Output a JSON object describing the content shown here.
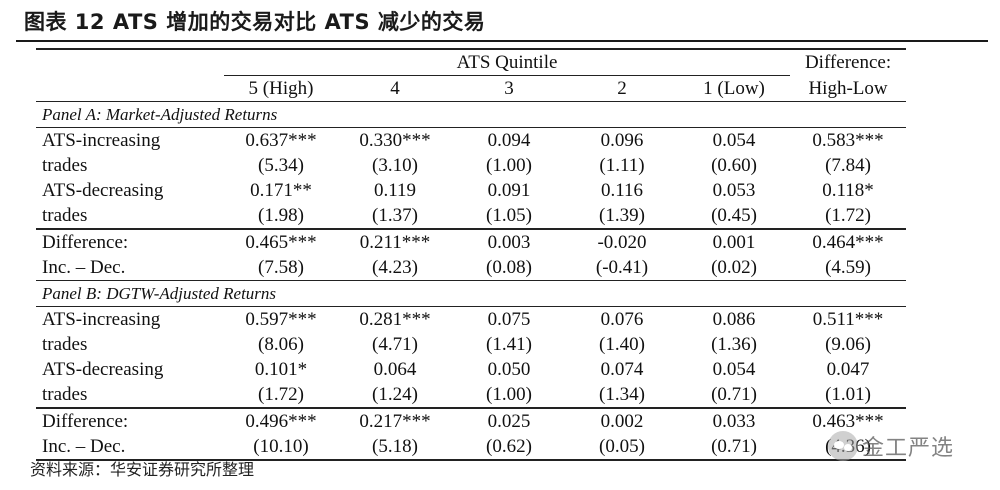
{
  "title": "图表 12 ATS 增加的交易对比 ATS 减少的交易",
  "header": {
    "group_label": "ATS Quintile",
    "diff_label_1": "Difference:",
    "diff_label_2": "High-Low",
    "quintiles": [
      "5 (High)",
      "4",
      "3",
      "2",
      "1 (Low)"
    ]
  },
  "panels": [
    {
      "label": "Panel A: Market-Adjusted Returns",
      "rows": [
        {
          "label": "ATS-increasing",
          "values": [
            "0.637***",
            "0.330***",
            "0.094",
            "0.096",
            "0.054",
            "0.583***"
          ]
        },
        {
          "label": "trades",
          "values": [
            "(5.34)",
            "(3.10)",
            "(1.00)",
            "(1.11)",
            "(0.60)",
            "(7.84)"
          ]
        },
        {
          "label": "ATS-decreasing",
          "values": [
            "0.171**",
            "0.119",
            "0.091",
            "0.116",
            "0.053",
            "0.118*"
          ]
        },
        {
          "label": "trades",
          "values": [
            "(1.98)",
            "(1.37)",
            "(1.05)",
            "(1.39)",
            "(0.45)",
            "(1.72)"
          ]
        },
        {
          "label": "Difference:",
          "values": [
            "0.465***",
            "0.211***",
            "0.003",
            "-0.020",
            "0.001",
            "0.464***"
          ]
        },
        {
          "label": "Inc. – Dec.",
          "values": [
            "(7.58)",
            "(4.23)",
            "(0.08)",
            "(-0.41)",
            "(0.02)",
            "(4.59)"
          ]
        }
      ]
    },
    {
      "label": "Panel B: DGTW-Adjusted Returns",
      "rows": [
        {
          "label": "ATS-increasing",
          "values": [
            "0.597***",
            "0.281***",
            "0.075",
            "0.076",
            "0.086",
            "0.511***"
          ]
        },
        {
          "label": "trades",
          "values": [
            "(8.06)",
            "(4.71)",
            "(1.41)",
            "(1.40)",
            "(1.36)",
            "(9.06)"
          ]
        },
        {
          "label": "ATS-decreasing",
          "values": [
            "0.101*",
            "0.064",
            "0.050",
            "0.074",
            "0.054",
            "0.047"
          ]
        },
        {
          "label": "trades",
          "values": [
            "(1.72)",
            "(1.24)",
            "(1.00)",
            "(1.34)",
            "(0.71)",
            "(1.01)"
          ]
        },
        {
          "label": "Difference:",
          "values": [
            "0.496***",
            "0.217***",
            "0.025",
            "0.002",
            "0.033",
            "0.463***"
          ]
        },
        {
          "label": "Inc. – Dec.",
          "values": [
            "(10.10)",
            "(5.18)",
            "(0.62)",
            "(0.05)",
            "(0.71)",
            "(4.36)"
          ]
        }
      ]
    }
  ],
  "source": "资料来源：华安证券研究所整理",
  "watermark": "金工严选"
}
